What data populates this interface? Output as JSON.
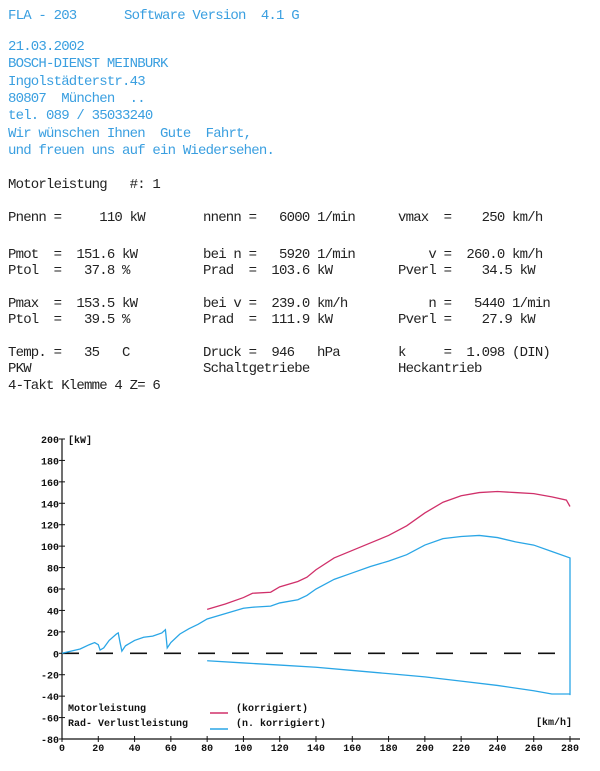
{
  "header": {
    "device": "FLA - 203",
    "software": "Software Version  4.1 G"
  },
  "address": [
    "21.03.2002",
    "BOSCH-DIENST MEINBURK",
    "Ingolstädterstr.43",
    "80807  München  ..",
    "tel. 089 / 35033240",
    "Wir wünschen Ihnen  Gute  Fahrt,",
    "und freuen uns auf ein Wiedersehen."
  ],
  "title": "Motorleistung   #: 1",
  "rows": [
    [
      "Pnenn =     110 kW",
      "nnenn =   6000 1/min",
      "vmax  =    250 km/h"
    ],
    [
      "Pmot  =  151.6 kW",
      "bei n =   5920 1/min",
      "    v =  260.0 km/h"
    ],
    [
      "Ptol  =   37.8 %",
      "Prad  =  103.6 kW",
      "Pverl =    34.5 kW"
    ],
    [
      "Pmax  =  153.5 kW",
      "bei v =  239.0 km/h",
      "    n =   5440 1/min"
    ],
    [
      "Ptol  =   39.5 %",
      "Prad  =  111.9 kW",
      "Pverl =    27.9 kW"
    ],
    [
      "Temp. =   35   C",
      "Druck =  946   hPa",
      "k     =  1.098 (DIN)"
    ],
    [
      "PKW",
      "Schaltgetriebe",
      "Heckantrieb"
    ],
    [
      "4-Takt Klemme 4 Z= 6",
      "",
      ""
    ]
  ],
  "chart_data": {
    "type": "line",
    "ylabel": "[kW]",
    "xlabel": "[km/h]",
    "xlim": [
      0,
      280
    ],
    "ylim": [
      -80,
      200
    ],
    "xticks": [
      0,
      20,
      40,
      60,
      80,
      100,
      120,
      140,
      160,
      180,
      200,
      220,
      240,
      260,
      280
    ],
    "yticks": [
      200,
      180,
      160,
      140,
      120,
      100,
      80,
      60,
      40,
      20,
      0,
      -20,
      -40,
      -60,
      -80
    ],
    "legend": {
      "position": "bottom-left",
      "labels": [
        "Motorleistung",
        "Rad- Verlustleistung"
      ],
      "notes": [
        "(korrigiert)",
        "(n. korrigiert)"
      ]
    },
    "colors": {
      "motor": "#d0306a",
      "rad": "#2aa6e6",
      "zero": "#111111"
    },
    "series": [
      {
        "name": "Motorleistung",
        "color": "#d0306a",
        "x": [
          80,
          90,
          100,
          105,
          115,
          120,
          130,
          135,
          140,
          150,
          160,
          170,
          180,
          190,
          200,
          210,
          220,
          230,
          240,
          250,
          260,
          270,
          278,
          280
        ],
        "y": [
          41,
          46,
          52,
          56,
          57,
          62,
          67,
          71,
          78,
          89,
          96,
          103,
          110,
          119,
          131,
          141,
          147,
          150,
          151,
          150,
          149,
          146,
          143,
          137
        ]
      },
      {
        "name": "Rad- Verlustleistung",
        "color": "#2aa6e6",
        "x": [
          0,
          5,
          10,
          15,
          18,
          20,
          21,
          23,
          26,
          30,
          31,
          32,
          33,
          35,
          40,
          45,
          50,
          55,
          57,
          58,
          60,
          65,
          70,
          75,
          80,
          90,
          100,
          105,
          115,
          120,
          130,
          135,
          140,
          150,
          160,
          170,
          180,
          190,
          200,
          210,
          220,
          230,
          240,
          250,
          260,
          270,
          280,
          280
        ],
        "y": [
          0,
          2,
          4,
          8,
          10,
          8,
          3,
          5,
          12,
          18,
          19,
          10,
          2,
          7,
          12,
          15,
          16,
          19,
          22,
          5,
          10,
          18,
          23,
          27,
          32,
          37,
          42,
          43,
          44,
          47,
          50,
          54,
          60,
          69,
          75,
          81,
          86,
          92,
          101,
          107,
          109,
          110,
          108,
          104,
          101,
          95,
          89,
          -39
        ]
      },
      {
        "name": "Verlustleistung",
        "color": "#2aa6e6",
        "x": [
          80,
          100,
          120,
          140,
          160,
          180,
          200,
          220,
          240,
          260,
          270,
          280
        ],
        "y": [
          -7,
          -9,
          -11,
          -13,
          -16,
          -19,
          -22,
          -26,
          -30,
          -35,
          -38,
          -38
        ]
      }
    ]
  }
}
